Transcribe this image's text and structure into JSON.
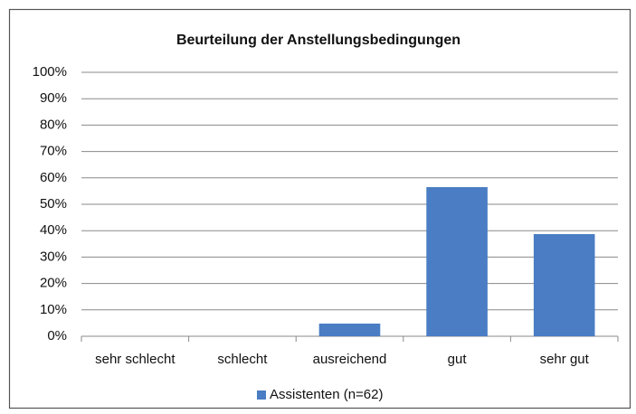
{
  "chart_data": {
    "type": "bar",
    "title": "Beurteilung der Anstellungsbedingungen",
    "categories": [
      "sehr schlecht",
      "schlecht",
      "ausreichend",
      "gut",
      "sehr gut"
    ],
    "series": [
      {
        "name": "Assistenten (n=62)",
        "color": "#4a7dc4",
        "values": [
          0,
          0,
          4.8,
          56.5,
          38.7
        ]
      }
    ],
    "ylim": [
      0,
      100
    ],
    "yticks": [
      {
        "value": 0,
        "label": "0%"
      },
      {
        "value": 10,
        "label": "10%"
      },
      {
        "value": 20,
        "label": "20%"
      },
      {
        "value": 30,
        "label": "30%"
      },
      {
        "value": 40,
        "label": "40%"
      },
      {
        "value": 50,
        "label": "50%"
      },
      {
        "value": 60,
        "label": "60%"
      },
      {
        "value": 70,
        "label": "70%"
      },
      {
        "value": 80,
        "label": "80%"
      },
      {
        "value": 90,
        "label": "90%"
      },
      {
        "value": 100,
        "label": "100%"
      }
    ],
    "grid": true,
    "legend": "bottom"
  }
}
